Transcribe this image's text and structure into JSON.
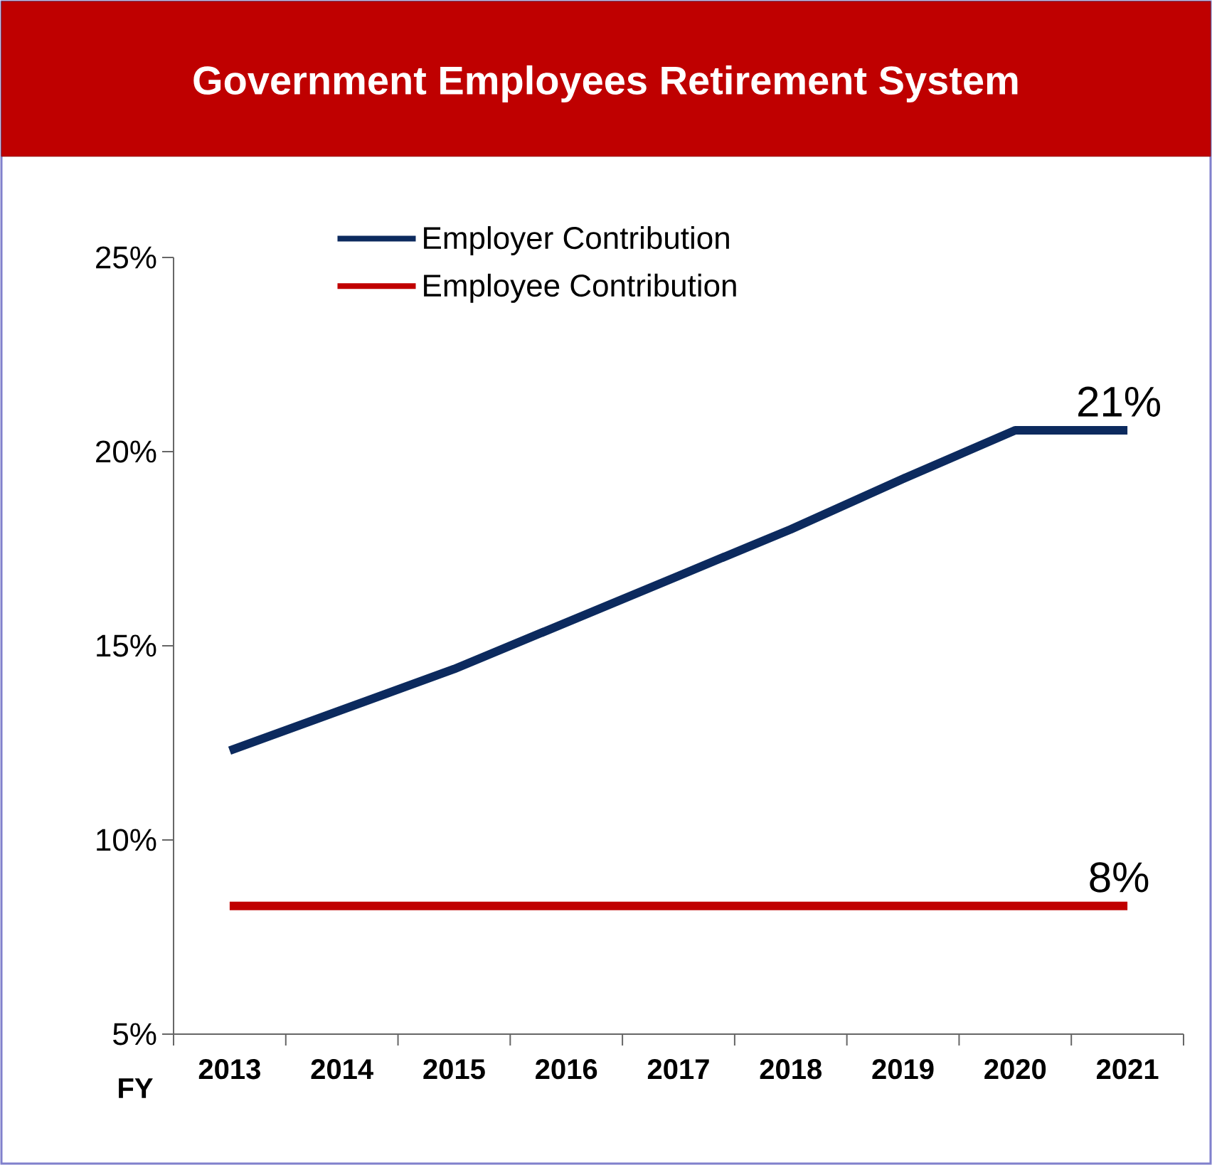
{
  "chart_data": {
    "type": "line",
    "title": "Government Employees Retirement System",
    "xlabel": "FY",
    "categories": [
      "2013",
      "2014",
      "2015",
      "2016",
      "2017",
      "2018",
      "2019",
      "2020",
      "2021"
    ],
    "series": [
      {
        "name": "Employer Contribution",
        "color": "#0c2a5e",
        "values": [
          12.3,
          13.35,
          14.4,
          15.6,
          16.8,
          18.0,
          19.3,
          20.55,
          20.55
        ]
      },
      {
        "name": "Employee Contribution",
        "color": "#c00000",
        "values": [
          8.3,
          8.3,
          8.3,
          8.3,
          8.3,
          8.3,
          8.3,
          8.3,
          8.3
        ]
      }
    ],
    "ylim": [
      5,
      25
    ],
    "yticks": [
      {
        "value": 5,
        "label": "5%"
      },
      {
        "value": 10,
        "label": "10%"
      },
      {
        "value": 15,
        "label": "15%"
      },
      {
        "value": 20,
        "label": "20%"
      },
      {
        "value": 25,
        "label": "25%"
      }
    ],
    "annotations": [
      {
        "text": "21%",
        "x": "2021",
        "y": 20.55
      },
      {
        "text": "8%",
        "x": "2021",
        "y": 8.3
      }
    ],
    "legend": "top left",
    "grid": false
  }
}
